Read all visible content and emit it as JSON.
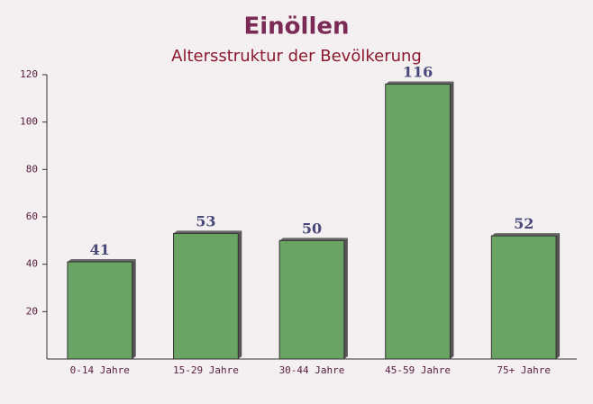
{
  "chart_data": {
    "type": "bar",
    "title": "Einöllen",
    "subtitle": "Altersstruktur der Bevölkerung",
    "categories": [
      "0-14 Jahre",
      "15-29 Jahre",
      "30-44 Jahre",
      "45-59 Jahre",
      "75+ Jahre"
    ],
    "values": [
      41,
      53,
      50,
      116,
      52
    ],
    "color": "#6aa464",
    "ylim": [
      0,
      120
    ],
    "yticks": [
      20,
      40,
      60,
      80,
      100,
      120
    ],
    "grid": false
  }
}
